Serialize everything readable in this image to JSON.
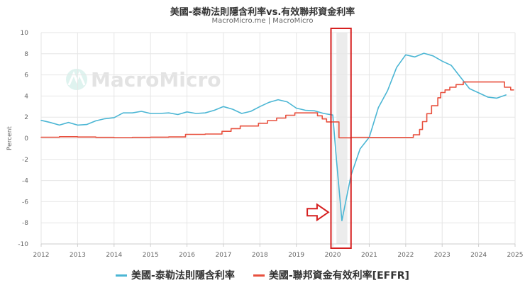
{
  "chart_data": {
    "type": "line",
    "title": "美國-泰勒法則隱含利率vs.有效聯邦資金利率",
    "subtitle": "MacroMicro.me | MacroMicro",
    "watermark": "MacroMicro",
    "ylabel": "Percent",
    "xlabel": "",
    "xlim": [
      2012.0,
      2025.0
    ],
    "ylim": [
      -10,
      10
    ],
    "x_ticks": [
      "2012",
      "2013",
      "2014",
      "2015",
      "2016",
      "2017",
      "2018",
      "2019",
      "2020",
      "2021",
      "2022",
      "2023",
      "2024",
      "2025"
    ],
    "y_ticks": [
      "10",
      "8",
      "6",
      "4",
      "2",
      "0",
      "-2",
      "-4",
      "-6",
      "-8",
      "-10"
    ],
    "grid": true,
    "legend_position": "bottom",
    "shaded_region": {
      "from": 2020.1,
      "to": 2020.4
    },
    "highlight_box": {
      "from": 2019.95,
      "to": 2020.5
    },
    "arrow": {
      "x_from": 2019.3,
      "x_to": 2019.88,
      "y": -7.0
    },
    "series": [
      {
        "name": "美國-泰勒法則隱含利率",
        "color": "#4bb6d4",
        "style": "line",
        "points": [
          [
            2012.0,
            1.7
          ],
          [
            2012.25,
            1.5
          ],
          [
            2012.5,
            1.25
          ],
          [
            2012.75,
            1.5
          ],
          [
            2013.0,
            1.25
          ],
          [
            2013.25,
            1.3
          ],
          [
            2013.5,
            1.65
          ],
          [
            2013.75,
            1.85
          ],
          [
            2014.0,
            1.95
          ],
          [
            2014.25,
            2.4
          ],
          [
            2014.5,
            2.4
          ],
          [
            2014.75,
            2.55
          ],
          [
            2015.0,
            2.35
          ],
          [
            2015.25,
            2.35
          ],
          [
            2015.5,
            2.4
          ],
          [
            2015.75,
            2.25
          ],
          [
            2016.0,
            2.5
          ],
          [
            2016.25,
            2.35
          ],
          [
            2016.5,
            2.4
          ],
          [
            2016.75,
            2.65
          ],
          [
            2017.0,
            3.0
          ],
          [
            2017.25,
            2.75
          ],
          [
            2017.5,
            2.35
          ],
          [
            2017.75,
            2.55
          ],
          [
            2018.0,
            3.0
          ],
          [
            2018.25,
            3.4
          ],
          [
            2018.5,
            3.65
          ],
          [
            2018.75,
            3.45
          ],
          [
            2019.0,
            2.85
          ],
          [
            2019.25,
            2.65
          ],
          [
            2019.5,
            2.6
          ],
          [
            2019.75,
            2.35
          ],
          [
            2020.0,
            2.2
          ],
          [
            2020.1,
            -2.0
          ],
          [
            2020.25,
            -7.8
          ],
          [
            2020.5,
            -3.5
          ],
          [
            2020.75,
            -1.0
          ],
          [
            2021.0,
            0.1
          ],
          [
            2021.25,
            2.9
          ],
          [
            2021.5,
            4.5
          ],
          [
            2021.75,
            6.7
          ],
          [
            2022.0,
            7.9
          ],
          [
            2022.25,
            7.7
          ],
          [
            2022.5,
            8.05
          ],
          [
            2022.75,
            7.8
          ],
          [
            2023.0,
            7.3
          ],
          [
            2023.25,
            6.9
          ],
          [
            2023.5,
            5.8
          ],
          [
            2023.75,
            4.7
          ],
          [
            2024.0,
            4.3
          ],
          [
            2024.25,
            3.9
          ],
          [
            2024.5,
            3.8
          ],
          [
            2024.75,
            4.1
          ]
        ]
      },
      {
        "name": "美國-聯邦資金有效利率[EFFR]",
        "color": "#e8503e",
        "style": "step",
        "points": [
          [
            2012.0,
            0.1
          ],
          [
            2012.5,
            0.15
          ],
          [
            2013.0,
            0.12
          ],
          [
            2013.5,
            0.09
          ],
          [
            2014.0,
            0.07
          ],
          [
            2014.5,
            0.09
          ],
          [
            2015.0,
            0.11
          ],
          [
            2015.5,
            0.13
          ],
          [
            2015.96,
            0.37
          ],
          [
            2016.5,
            0.4
          ],
          [
            2016.96,
            0.66
          ],
          [
            2017.21,
            0.91
          ],
          [
            2017.46,
            1.16
          ],
          [
            2017.96,
            1.42
          ],
          [
            2018.21,
            1.68
          ],
          [
            2018.46,
            1.91
          ],
          [
            2018.71,
            2.18
          ],
          [
            2018.96,
            2.4
          ],
          [
            2019.58,
            2.13
          ],
          [
            2019.71,
            1.83
          ],
          [
            2019.83,
            1.55
          ],
          [
            2020.17,
            0.05
          ],
          [
            2020.5,
            0.09
          ],
          [
            2021.0,
            0.08
          ],
          [
            2021.5,
            0.08
          ],
          [
            2022.21,
            0.33
          ],
          [
            2022.38,
            0.83
          ],
          [
            2022.46,
            1.58
          ],
          [
            2022.58,
            2.33
          ],
          [
            2022.71,
            3.08
          ],
          [
            2022.88,
            3.83
          ],
          [
            2022.96,
            4.33
          ],
          [
            2023.08,
            4.58
          ],
          [
            2023.21,
            4.83
          ],
          [
            2023.38,
            5.08
          ],
          [
            2023.58,
            5.33
          ],
          [
            2024.71,
            4.83
          ],
          [
            2024.88,
            4.58
          ],
          [
            2024.96,
            4.58
          ]
        ]
      }
    ]
  },
  "colors": {
    "grid": "#e6e6e6",
    "axis": "#cccccc",
    "highlight_box": "#d62020",
    "arrow": "#d62020",
    "shade": "#ececec"
  },
  "icons": {
    "watermark_logo": "macromicro-logo-icon"
  }
}
